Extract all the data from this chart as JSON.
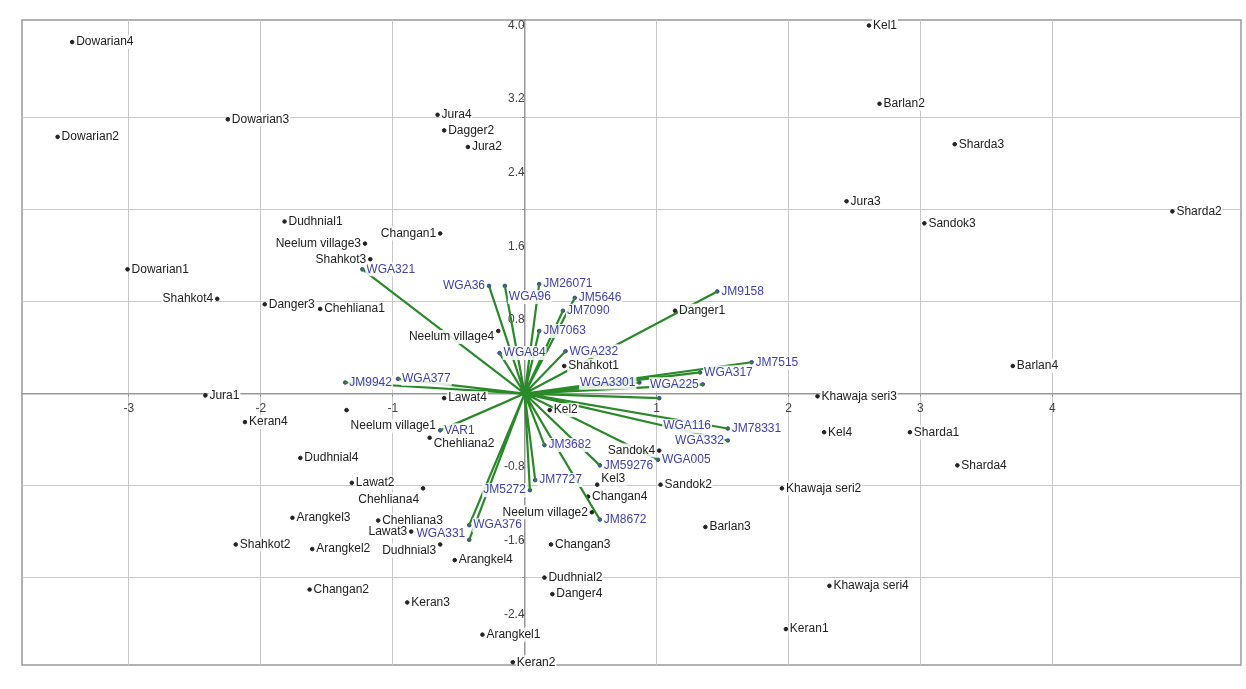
{
  "chart_data": {
    "type": "scatter",
    "xlim": [
      -3.81,
      5.43
    ],
    "ylim": [
      -2.95,
      4.06
    ],
    "xticks": [
      -3,
      -2,
      -1,
      {
        "value": 0,
        "label": null
      },
      1,
      2,
      3,
      4
    ],
    "yticks": [
      {
        "value": -2.4,
        "label": "-2.4"
      },
      {
        "value": -2,
        "label": null
      },
      {
        "value": -1.6,
        "label": "-1.6"
      },
      {
        "value": -1,
        "label": null
      },
      {
        "value": -0.8,
        "label": "-0.8"
      },
      {
        "value": 0.8,
        "label": "0.8"
      },
      {
        "value": 1,
        "label": null
      },
      {
        "value": 1.6,
        "label": "1.6"
      },
      {
        "value": 2,
        "label": null
      },
      {
        "value": 2.4,
        "label": "2.4"
      },
      {
        "value": 3,
        "label": null
      },
      {
        "value": 3.2,
        "label": "3.2"
      },
      {
        "value": 4,
        "label": "4.0"
      }
    ],
    "grid": true,
    "legend": false,
    "marker": "circle",
    "series": [
      {
        "type": "line",
        "color": "#2a8a2a",
        "marker": "none",
        "x": [
          0,
          -1.23,
          0,
          -0.27,
          0,
          -0.15,
          0,
          0.11,
          0,
          0.38,
          0,
          0.29,
          0,
          1.46,
          0,
          1.72,
          0,
          1.33,
          0,
          1.35,
          0,
          1.54,
          0,
          1.54,
          0,
          1.01,
          0,
          0.57,
          0,
          0.08,
          0,
          0.04,
          0,
          0.57,
          0,
          -0.42,
          0,
          -0.42,
          0,
          0.15,
          0,
          -1.36,
          0,
          -0.96,
          0,
          -0.19,
          0,
          0.31,
          0,
          0.11,
          0,
          -0.64,
          0,
          1.02,
          0,
          0.87
        ],
        "values": [
          0,
          1.35,
          0,
          1.17,
          0,
          1.17,
          0,
          1.19,
          0,
          1.04,
          0,
          0.9,
          0,
          1.11,
          0,
          0.34,
          0,
          0.23,
          0,
          0.1,
          0,
          -0.38,
          0,
          -0.51,
          0,
          -0.72,
          0,
          -0.78,
          0,
          -0.94,
          0,
          -1.05,
          0,
          -1.37,
          0,
          -1.43,
          0,
          -1.59,
          0,
          -0.56,
          0,
          0.12,
          0,
          0.16,
          0,
          0.44,
          0,
          0.46,
          0,
          0.68,
          0,
          -0.4,
          0,
          -0.05,
          0,
          0.12
        ]
      },
      {
        "color": "#3f3fb0",
        "x": [
          -1.23,
          -0.27,
          -0.15,
          0.11,
          0.38,
          0.29,
          1.46,
          1.72,
          1.33,
          1.35,
          1.54,
          1.54,
          1.01,
          0.57,
          0.08,
          0.04,
          0.57,
          -0.42,
          -0.42,
          0.15,
          -1.36,
          -0.96,
          -0.19,
          0.31,
          0.11,
          -0.64,
          1.02,
          0.87
        ],
        "values": [
          1.35,
          1.17,
          1.17,
          1.19,
          1.04,
          0.9,
          1.11,
          0.34,
          0.23,
          0.1,
          -0.38,
          -0.51,
          -0.72,
          -0.78,
          -0.94,
          -1.05,
          -1.37,
          -1.43,
          -1.59,
          -0.56,
          0.12,
          0.16,
          0.44,
          0.46,
          0.68,
          -0.4,
          -0.05,
          0.12
        ],
        "value_labels": [
          "WGA321",
          "WGA36",
          "WGA96",
          "JM26071",
          "JM5646",
          "JM7090",
          "JM9158",
          "JM7515",
          "WGA317",
          "WGA225",
          "JM78331",
          "WGA332",
          "WGA005",
          "JM59276",
          "JM7727",
          "JM5272",
          "JM8672",
          "WGA376",
          "WGA331",
          "JM3682",
          "JM9942",
          "WGA377",
          "WGA84",
          "WGA232",
          "JM7063",
          "VAR1",
          "WGA116",
          "WGA3301"
        ]
      },
      {
        "color": "#222222",
        "x": [
          -3.43,
          -3.54,
          -2.25,
          -3.01,
          -0.66,
          -0.61,
          -0.43,
          -1.82,
          -0.64,
          -1.21,
          -1.17,
          -2.33,
          -1.97,
          -1.55,
          -0.2,
          0.3,
          -0.61,
          -2.42,
          -2.12,
          -1.35,
          -0.72,
          -1.7,
          -1.31,
          -0.77,
          -1.76,
          -1.11,
          -2.19,
          -1.61,
          -0.86,
          -0.64,
          -0.53,
          -1.63,
          -0.89,
          -0.32,
          -0.09,
          0.15,
          0.21,
          0.2,
          0.51,
          0.48,
          0.55,
          0.19,
          1.02,
          1.03,
          1.37,
          1.14,
          2.61,
          2.69,
          3.26,
          2.44,
          3.03,
          4.91,
          3.7,
          2.22,
          2.27,
          2.92,
          3.28,
          1.95,
          2.31,
          1.98
        ],
        "values": [
          3.82,
          2.79,
          2.98,
          1.35,
          3.03,
          2.86,
          2.68,
          1.87,
          1.74,
          1.63,
          1.46,
          1.03,
          0.97,
          0.92,
          0.68,
          0.3,
          -0.05,
          -0.02,
          -0.31,
          -0.18,
          -0.48,
          -0.7,
          -0.97,
          -1.03,
          -1.35,
          -1.38,
          -1.64,
          -1.69,
          -1.5,
          -1.64,
          -1.81,
          -2.13,
          -2.27,
          -2.62,
          -2.92,
          -2.0,
          -2.18,
          -1.64,
          -1.29,
          -1.12,
          -0.99,
          -0.18,
          -0.62,
          -0.99,
          -1.45,
          0.9,
          4.0,
          3.15,
          2.71,
          2.09,
          1.85,
          1.98,
          0.3,
          -0.03,
          -0.42,
          -0.42,
          -0.78,
          -1.03,
          -2.09,
          -2.56
        ],
        "value_labels": [
          "Dowarian4",
          "Dowarian2",
          "Dowarian3",
          "Dowarian1",
          "Jura4",
          "Dagger2",
          "Jura2",
          "Dudhnial1",
          "Changan1",
          "Neelum village3",
          "Shahkot3",
          "Shahkot4",
          "Danger3",
          "Chehliana1",
          "Neelum village4",
          "Shahkot1",
          "Lawat4",
          "Jura1",
          "Keran4",
          "Neelum village1",
          "Chehliana2",
          "Dudhnial4",
          "Lawat2",
          "Chehliana4",
          "Arangkel3",
          "Chehliana3",
          "Shahkot2",
          "Arangkel2",
          "Lawat3",
          "Dudhnial3",
          "Arangkel4",
          "Changan2",
          "Keran3",
          "Arangkel1",
          "Keran2",
          "Dudhnial2",
          "Danger4",
          "Changan3",
          "Neelum village2",
          "Changan4",
          "Kel3",
          "Kel2",
          "Sandok4",
          "Sandok2",
          "Barlan3",
          "Danger1",
          "Kel1",
          "Barlan2",
          "Sharda3",
          "Jura3",
          "Sandok3",
          "Sharda2",
          "Barlan4",
          "Khawaja seri3",
          "Kel4",
          "Sharda1",
          "Sharda4",
          "Khawaja seri2",
          "Khawaja seri4",
          "Keran1"
        ]
      }
    ]
  }
}
